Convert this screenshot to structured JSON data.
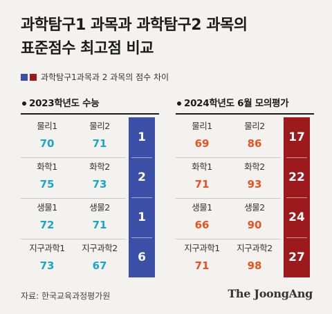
{
  "title_line1": "과학탐구1 과목과 과학탐구2 과목의",
  "title_line2": "표준점수 최고점 비교",
  "legend_label": "과학탐구1과목과 2 과목의 점수 차이",
  "colors": {
    "blue": "#3b4fa6",
    "red": "#9c1a1c",
    "score_2023": "#1ba6c8",
    "score_2024": "#e8531f"
  },
  "chart_data": [
    {
      "type": "table",
      "title": "2023학년도 수능",
      "rows": [
        {
          "subject1": "물리1",
          "score1": 70,
          "subject2": "물리2",
          "score2": 71,
          "diff": 1
        },
        {
          "subject1": "화학1",
          "score1": 75,
          "subject2": "화학2",
          "score2": 73,
          "diff": 2
        },
        {
          "subject1": "생물1",
          "score1": 72,
          "subject2": "생물2",
          "score2": 71,
          "diff": 1
        },
        {
          "subject1": "지구과학1",
          "score1": 73,
          "subject2": "지구과학2",
          "score2": 67,
          "diff": 6
        }
      ]
    },
    {
      "type": "table",
      "title": "2024학년도 6월 모의평가",
      "rows": [
        {
          "subject1": "물리1",
          "score1": 69,
          "subject2": "물리2",
          "score2": 86,
          "diff": 17
        },
        {
          "subject1": "화학1",
          "score1": 71,
          "subject2": "화학2",
          "score2": 93,
          "diff": 22
        },
        {
          "subject1": "생물1",
          "score1": 66,
          "subject2": "생물2",
          "score2": 90,
          "diff": 24
        },
        {
          "subject1": "지구과학1",
          "score1": 71,
          "subject2": "지구과학2",
          "score2": 98,
          "diff": 27
        }
      ]
    }
  ],
  "source": "자료: 한국교육과정평가원",
  "brand": "The JoongAng"
}
